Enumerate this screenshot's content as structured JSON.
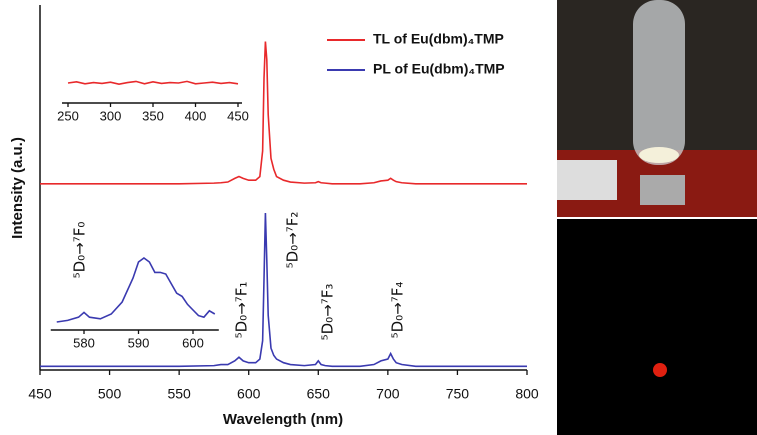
{
  "chart_data": [
    {
      "type": "line",
      "xlabel": "Wavelength (nm)",
      "ylabel": "Intensity (a.u.)",
      "xlim": [
        450,
        800
      ],
      "xticks": [
        450,
        500,
        550,
        600,
        650,
        700,
        750,
        800
      ],
      "ylim": [
        0,
        100
      ],
      "x": [
        450,
        500,
        550,
        575,
        580,
        585,
        590,
        593,
        596,
        600,
        605,
        608,
        610,
        611,
        612,
        613,
        614,
        616,
        618,
        620,
        625,
        630,
        640,
        648,
        650,
        652,
        655,
        660,
        680,
        690,
        695,
        700,
        702,
        704,
        706,
        710,
        720,
        750,
        800
      ],
      "series": [
        {
          "name": "TL of Eu(dbm)₄TMP",
          "color": "#e8292b",
          "values": [
            51,
            51,
            51,
            51.2,
            51.3,
            51.5,
            52.5,
            53,
            52.5,
            52,
            52,
            53,
            60,
            80,
            90,
            85,
            70,
            58,
            55,
            53,
            52,
            51.5,
            51.2,
            51.3,
            51.6,
            51.3,
            51.2,
            51,
            51,
            51.3,
            51.8,
            52,
            52.5,
            52,
            51.6,
            51.3,
            51,
            51,
            51
          ]
        },
        {
          "name": "PL of Eu(dbm)₄TMP",
          "color": "#3a3ab0",
          "values": [
            1,
            1,
            1,
            1.2,
            1.5,
            1.5,
            2.5,
            3.5,
            2.5,
            2,
            2,
            3,
            8,
            25,
            43,
            30,
            15,
            6,
            4,
            3,
            2,
            1.5,
            1.2,
            1.5,
            2.5,
            1.5,
            1.2,
            1,
            1,
            1.5,
            2.5,
            3,
            4.5,
            3,
            2,
            1.5,
            1,
            1,
            1
          ]
        }
      ],
      "annotations": [
        "⁵D₀→⁷F₀",
        "⁵D₀→⁷F₁",
        "⁵D₀→⁷F₂",
        "⁵D₀→⁷F₃",
        "⁵D₀→⁷F₄"
      ]
    },
    {
      "type": "line",
      "xlim": [
        250,
        450
      ],
      "xticks": [
        250,
        300,
        350,
        400,
        450
      ],
      "ylim": [
        0,
        10
      ],
      "color": "#e8292b",
      "x": [
        250,
        260,
        270,
        280,
        290,
        300,
        310,
        320,
        330,
        340,
        350,
        360,
        370,
        380,
        390,
        400,
        410,
        420,
        430,
        440,
        450
      ],
      "values": [
        5,
        5.3,
        4.8,
        5.1,
        4.9,
        5.2,
        4.7,
        5.1,
        5.4,
        4.8,
        5.3,
        4.9,
        5.1,
        5,
        5.4,
        4.8,
        5,
        5.2,
        4.9,
        5.1,
        4.8
      ]
    },
    {
      "type": "line",
      "xlim": [
        575,
        604
      ],
      "xticks": [
        580,
        590,
        600
      ],
      "ylim": [
        0,
        10
      ],
      "color": "#3a3ab0",
      "x": [
        575,
        577,
        579,
        580,
        581,
        583,
        585,
        587,
        589,
        590,
        591,
        592,
        593,
        594,
        595,
        596,
        597,
        598,
        599,
        600,
        601,
        602,
        603,
        604
      ],
      "values": [
        1,
        1.2,
        1.6,
        2.2,
        1.6,
        1.4,
        2,
        3.5,
        6.5,
        8.5,
        9,
        8.5,
        7.2,
        7.2,
        7,
        5.8,
        4.6,
        4.2,
        3.2,
        2.5,
        1.8,
        1.6,
        2.4,
        2
      ]
    }
  ]
}
